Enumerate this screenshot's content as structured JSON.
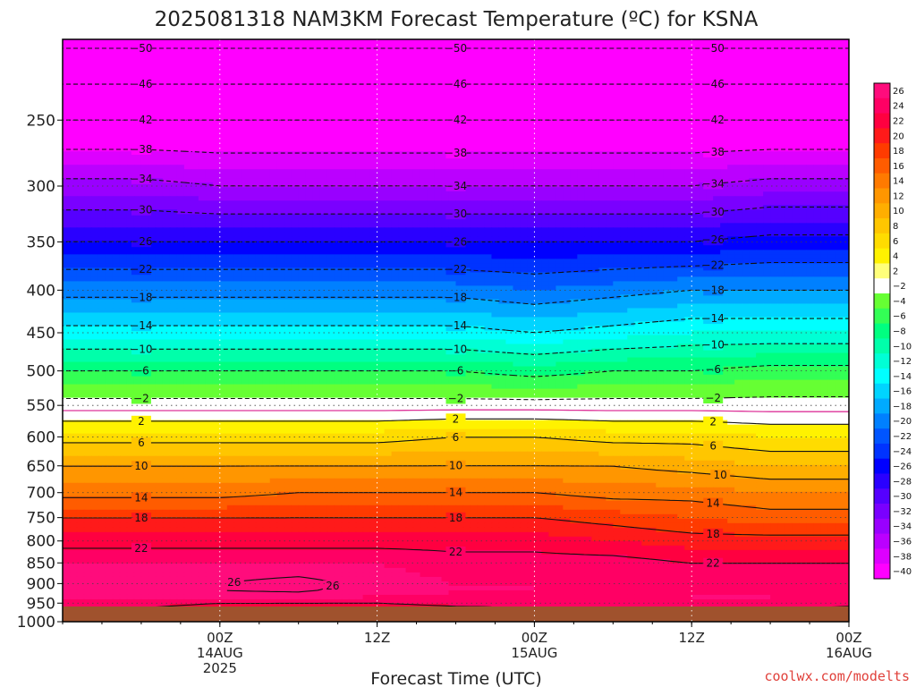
{
  "chart_data": {
    "type": "heatmap",
    "title": "2025081318 NAM3KM Forecast Temperature (ºC) for KSNA",
    "xlabel": "Forecast Time (UTC)",
    "ylabel": "",
    "y_scale": "log-pressure",
    "ylim": [
      1000,
      200
    ],
    "ytick_labels": [
      "250",
      "300",
      "350",
      "400",
      "450",
      "500",
      "550",
      "600",
      "650",
      "700",
      "750",
      "800",
      "850",
      "900",
      "950",
      "1000"
    ],
    "xlim_hours": [
      -6,
      54
    ],
    "xticks": [
      {
        "hour": 6,
        "line1": "00Z",
        "line2": "14AUG",
        "line3": "2025"
      },
      {
        "hour": 18,
        "line1": "12Z",
        "line2": "",
        "line3": ""
      },
      {
        "hour": 30,
        "line1": "00Z",
        "line2": "15AUG",
        "line3": ""
      },
      {
        "hour": 42,
        "line1": "12Z",
        "line2": "",
        "line3": ""
      },
      {
        "hour": 54,
        "line1": "00Z",
        "line2": "16AUG",
        "line3": ""
      }
    ],
    "x_hours": [
      0,
      6,
      12,
      18,
      24,
      30,
      36,
      42,
      48,
      54,
      60
    ],
    "levels_hpa": [
      1000,
      975,
      950,
      925,
      900,
      850,
      800,
      750,
      700,
      650,
      600,
      550,
      500,
      450,
      400,
      350,
      300,
      250,
      200
    ],
    "temperature_c": [
      [
        24,
        23,
        25,
        24,
        23,
        23,
        24,
        25,
        24,
        23,
        24
      ],
      [
        21,
        20,
        19,
        19,
        20,
        21,
        22,
        22,
        21,
        20,
        21
      ],
      [
        23,
        22,
        22,
        22,
        23,
        23,
        23,
        24,
        24,
        23,
        24
      ],
      [
        25,
        26,
        26,
        25,
        24,
        24,
        24,
        24,
        24,
        24,
        25
      ],
      [
        25,
        26,
        27,
        25,
        24,
        24,
        23,
        23,
        23,
        23,
        24
      ],
      [
        24,
        24,
        24,
        24,
        23,
        23,
        23,
        22,
        22,
        22,
        22
      ],
      [
        21,
        21,
        21,
        21,
        21,
        21,
        20,
        19,
        19,
        19,
        19
      ],
      [
        18,
        18,
        18,
        18,
        18,
        18,
        17,
        16,
        15,
        15,
        15
      ],
      [
        13,
        13,
        14,
        14,
        14,
        14,
        13,
        13,
        12,
        12,
        12
      ],
      [
        10,
        10,
        10,
        10,
        10,
        10,
        10,
        9,
        8,
        8,
        8
      ],
      [
        5,
        5,
        5,
        5,
        6,
        6,
        5,
        5,
        4,
        4,
        3
      ],
      [
        -1,
        -1,
        -1,
        -1,
        -1,
        -1,
        -1,
        -1,
        -1,
        -1,
        -1
      ],
      [
        -6,
        -6,
        -6,
        -6,
        -6,
        -7,
        -6,
        -6,
        -5,
        -5,
        -5
      ],
      [
        -13,
        -13,
        -13,
        -13,
        -13,
        -14,
        -13,
        -12,
        -12,
        -12,
        -12
      ],
      [
        -19,
        -19,
        -19,
        -19,
        -19,
        -20,
        -19,
        -18,
        -18,
        -18,
        -18
      ],
      [
        -26,
        -26,
        -26,
        -26,
        -26,
        -26,
        -26,
        -26,
        -25,
        -25,
        -25
      ],
      [
        -33,
        -34,
        -34,
        -34,
        -34,
        -34,
        -34,
        -34,
        -33,
        -33,
        -33
      ],
      [
        -42,
        -42,
        -42,
        -42,
        -42,
        -42,
        -42,
        -42,
        -42,
        -42,
        -42
      ],
      [
        -51,
        -51,
        -51,
        -51,
        -51,
        -51,
        -51,
        -51,
        -51,
        -51,
        -51
      ]
    ],
    "contour_levels": [
      -50,
      -46,
      -42,
      -38,
      -34,
      -30,
      -26,
      -22,
      -18,
      -14,
      -10,
      -6,
      -2,
      2,
      6,
      10,
      14,
      18,
      22,
      26
    ],
    "contour_style": {
      "below_zero": "dashed",
      "above_zero": "solid",
      "freezing_line_color": "#dd3399"
    },
    "colorbar": {
      "labels": [
        "26",
        "24",
        "22",
        "20",
        "18",
        "16",
        "14",
        "12",
        "10",
        "8",
        "6",
        "4",
        "2",
        "−2",
        "−4",
        "−6",
        "−8",
        "−10",
        "−12",
        "−14",
        "−16",
        "−18",
        "−20",
        "−22",
        "−24",
        "−26",
        "−28",
        "−30",
        "−32",
        "−34",
        "−36",
        "−38",
        "−40"
      ],
      "colors": [
        "#ff0c7c",
        "#ff0064",
        "#ff0040",
        "#ff1a1a",
        "#ff3b00",
        "#ff5c00",
        "#ff7a00",
        "#ff9600",
        "#ffae00",
        "#ffc600",
        "#ffdc00",
        "#fff200",
        "#ffff7a",
        "#ffffff",
        "#66ff33",
        "#33ff55",
        "#00ff80",
        "#00ffaa",
        "#00ffd5",
        "#00ffff",
        "#00d4ff",
        "#00aaff",
        "#0080ff",
        "#0055ff",
        "#0033ff",
        "#0000ff",
        "#2a00ff",
        "#5500ff",
        "#7a00ff",
        "#9900ff",
        "#bb00ff",
        "#dd00ff",
        "#ff00ff"
      ]
    },
    "ground_color": "#a0522d",
    "grid": true
  },
  "footer": {
    "credit": "coolwx.com/modelts",
    "credit_color": "#e0403a"
  }
}
